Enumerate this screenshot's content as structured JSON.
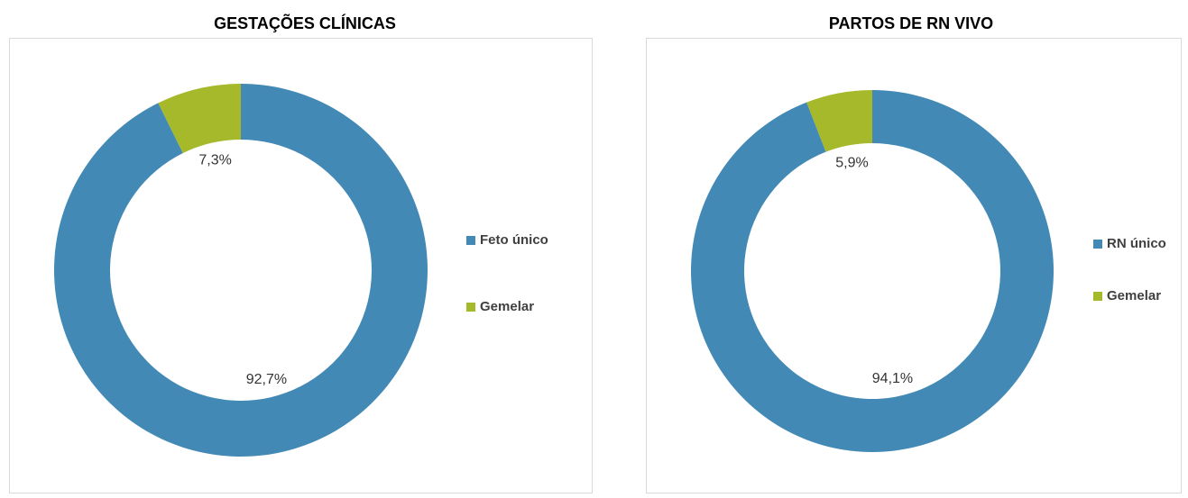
{
  "chart_data": [
    {
      "type": "donut",
      "title": "GESTAÇÕES CLÍNICAS",
      "categories": [
        "Feto único",
        "Gemelar"
      ],
      "values": [
        92.7,
        7.3
      ],
      "value_labels": [
        "92,7%",
        "7,3%"
      ],
      "colors": [
        "#4389b5",
        "#a5b92a"
      ]
    },
    {
      "type": "donut",
      "title": "PARTOS DE RN VIVO",
      "categories": [
        "RN único",
        "Gemelar"
      ],
      "values": [
        94.1,
        5.9
      ],
      "value_labels": [
        "94,1%",
        "5,9%"
      ],
      "colors": [
        "#4389b5",
        "#a5b92a"
      ]
    }
  ]
}
